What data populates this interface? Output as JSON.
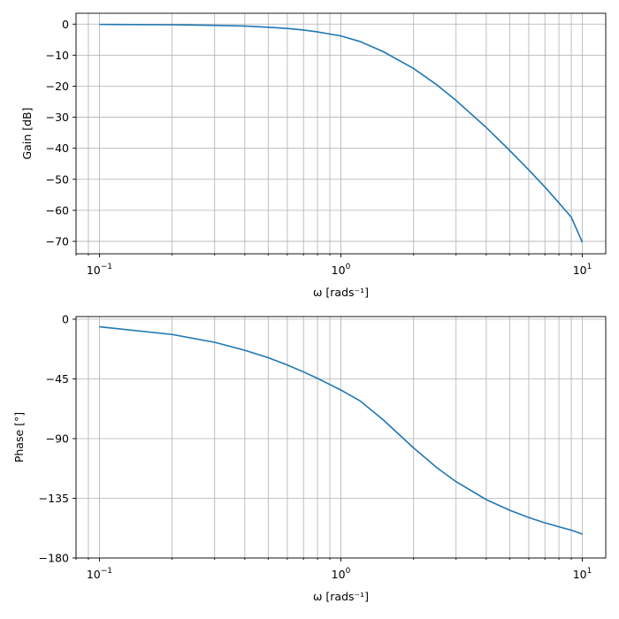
{
  "chart_data": [
    {
      "type": "line",
      "xscale": "log",
      "xlim": [
        0.08,
        12.5
      ],
      "ylim": [
        -74,
        3.5
      ],
      "grid": true,
      "xlabel": "ω [rads⁻¹]",
      "ylabel": "Gain [dB]",
      "x_tick_labels": [
        {
          "value": 0.1,
          "base": "10",
          "exp": "−1"
        },
        {
          "value": 1,
          "base": "10",
          "exp": "0"
        },
        {
          "value": 10,
          "base": "10",
          "exp": "1"
        }
      ],
      "y_ticks": [
        0,
        -10,
        -20,
        -30,
        -40,
        -50,
        -60,
        -70
      ],
      "y_tick_labels": [
        "0",
        "−10",
        "−20",
        "−30",
        "−40",
        "−50",
        "−60",
        "−70"
      ],
      "series": [
        {
          "color": "#1f77b4",
          "x": [
            0.1,
            0.2,
            0.3,
            0.4,
            0.5,
            0.6,
            0.7,
            0.8,
            0.9,
            1.0,
            1.2,
            1.5,
            2.0,
            2.5,
            3.0,
            4.0,
            5.0,
            6.0,
            7.0,
            8.0,
            9.0,
            10.0
          ],
          "y": [
            -0.1,
            -0.2,
            -0.4,
            -0.6,
            -1.0,
            -1.4,
            -1.9,
            -2.5,
            -3.2,
            -3.8,
            -5.6,
            -8.9,
            -14.3,
            -19.6,
            -24.6,
            -33.3,
            -40.7,
            -47.0,
            -52.5,
            -57.6,
            -62.2,
            -70.3
          ]
        }
      ]
    },
    {
      "type": "line",
      "xscale": "log",
      "xlim": [
        0.08,
        12.5
      ],
      "ylim": [
        -180,
        2
      ],
      "grid": true,
      "xlabel": "ω [rads⁻¹]",
      "ylabel": "Phase [°]",
      "x_tick_labels": [
        {
          "value": 0.1,
          "base": "10",
          "exp": "−1"
        },
        {
          "value": 1,
          "base": "10",
          "exp": "0"
        },
        {
          "value": 10,
          "base": "10",
          "exp": "1"
        }
      ],
      "y_ticks": [
        0,
        -45,
        -90,
        -135,
        -180
      ],
      "y_tick_labels": [
        "0",
        "−45",
        "−90",
        "−135",
        "−180"
      ],
      "series": [
        {
          "color": "#1f77b4",
          "x": [
            0.1,
            0.2,
            0.3,
            0.4,
            0.5,
            0.6,
            0.7,
            0.8,
            0.9,
            1.0,
            1.2,
            1.5,
            2.0,
            2.5,
            3.0,
            4.0,
            5.0,
            6.0,
            7.0,
            8.0,
            9.0,
            10.0
          ],
          "y": [
            -5.7,
            -11.5,
            -17.4,
            -23.4,
            -29.0,
            -34.5,
            -39.7,
            -44.6,
            -49.2,
            -53.4,
            -61.5,
            -76.0,
            -97.0,
            -112.0,
            -122.5,
            -136.0,
            -144.0,
            -149.5,
            -153.5,
            -156.5,
            -159.0,
            -162.0
          ]
        }
      ]
    }
  ]
}
